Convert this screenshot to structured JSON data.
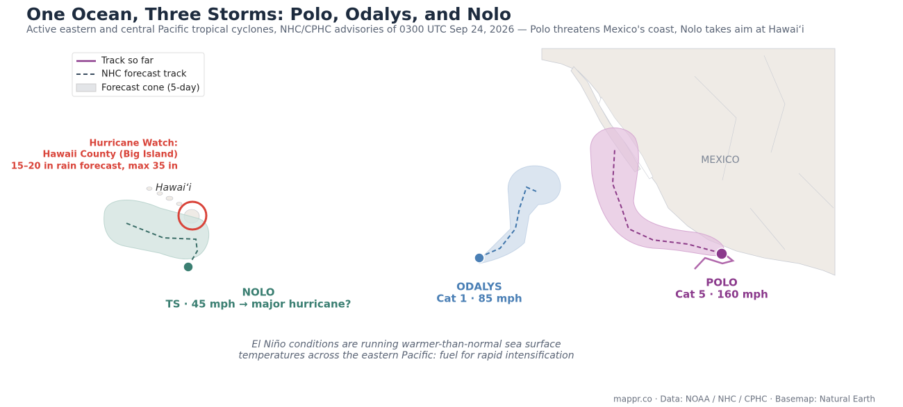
{
  "title": "One Ocean, Three Storms: Polo, Odalys, and Nolo",
  "subtitle": "Active eastern and central Pacific tropical cyclones, NHC/CPHC advisories of 0300 UTC Sep 24, 2026 — Polo threatens Mexico's coast, Nolo takes aim at Hawaiʻi",
  "legend": [
    "Track so far",
    "NHC forecast track",
    "Forecast cone (5-day)"
  ],
  "places": {
    "mexico": "MEXICO",
    "hawaii": "Hawaiʻi"
  },
  "storms": [
    {
      "name": "NOLO",
      "detail": "TS · 45 mph → major hurricane?"
    },
    {
      "name": "ODALYS",
      "detail": "Cat 1 · 85 mph"
    },
    {
      "name": "POLO",
      "detail": "Cat 5 · 160 mph"
    }
  ],
  "alert": [
    "Hurricane Watch:",
    "Hawaii County (Big Island)",
    "15–20 in rain forecast, max 35 in"
  ],
  "note": [
    "El Niño conditions are running warmer-than-normal sea surface",
    "temperatures across the eastern Pacific: fuel for rapid intensification"
  ],
  "credit": "mappr.co · Data: NOAA / NHC / CPHC · Basemap: Natural Earth"
}
